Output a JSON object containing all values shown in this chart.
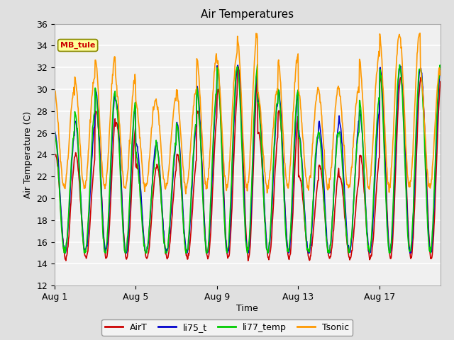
{
  "title": "Air Temperatures",
  "xlabel": "Time",
  "ylabel": "Air Temperature (C)",
  "ylim": [
    12,
    36
  ],
  "yticks": [
    12,
    14,
    16,
    18,
    20,
    22,
    24,
    26,
    28,
    30,
    32,
    34,
    36
  ],
  "background_color": "#e0e0e0",
  "plot_bg_color": "#f0f0f0",
  "legend_entries": [
    "AirT",
    "li75_t",
    "li77_temp",
    "Tsonic"
  ],
  "legend_colors": [
    "#cc0000",
    "#0000cc",
    "#00cc00",
    "#ff9900"
  ],
  "annotation_text": "MB_tule",
  "annotation_color": "#cc0000",
  "annotation_bg": "#ffff99",
  "x_tick_labels": [
    "Aug 1",
    "Aug 5",
    "Aug 9",
    "Aug 13",
    "Aug 17"
  ],
  "x_tick_positions": [
    0,
    4,
    8,
    12,
    16
  ],
  "total_days": 19,
  "grid_color": "#ffffff",
  "line_width": 1.2
}
